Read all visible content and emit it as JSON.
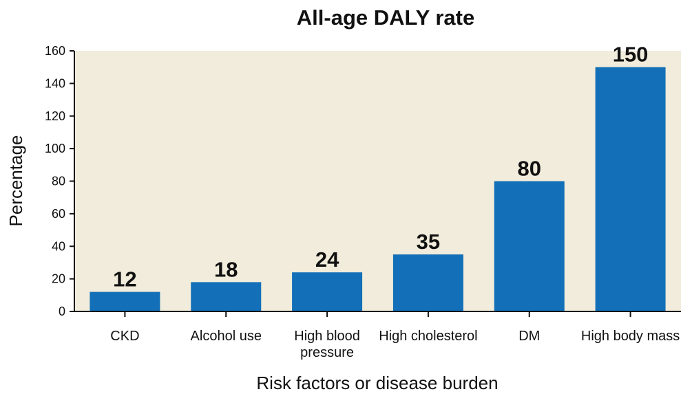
{
  "chart_data": {
    "type": "bar",
    "title": "All-age DALY rate",
    "xlabel": "Risk factors or disease burden",
    "ylabel": "Percentage",
    "categories": [
      "CKD",
      "Alcohol use",
      "High blood pressure",
      "High cholesterol",
      "DM",
      "High body mass"
    ],
    "category_lines": [
      [
        "CKD"
      ],
      [
        "Alcohol use"
      ],
      [
        "High blood",
        "pressure"
      ],
      [
        "High cholesterol"
      ],
      [
        "DM"
      ],
      [
        "High body mass"
      ]
    ],
    "values": [
      12,
      18,
      24,
      35,
      80,
      150
    ],
    "ylim": [
      0,
      160
    ],
    "yticks": [
      0,
      20,
      40,
      60,
      80,
      100,
      120,
      140,
      160
    ],
    "grid": false,
    "legend": "none",
    "colors": {
      "bar": "#1370b8",
      "plot_background": "#f1ecdb",
      "axis": "#111111"
    }
  }
}
